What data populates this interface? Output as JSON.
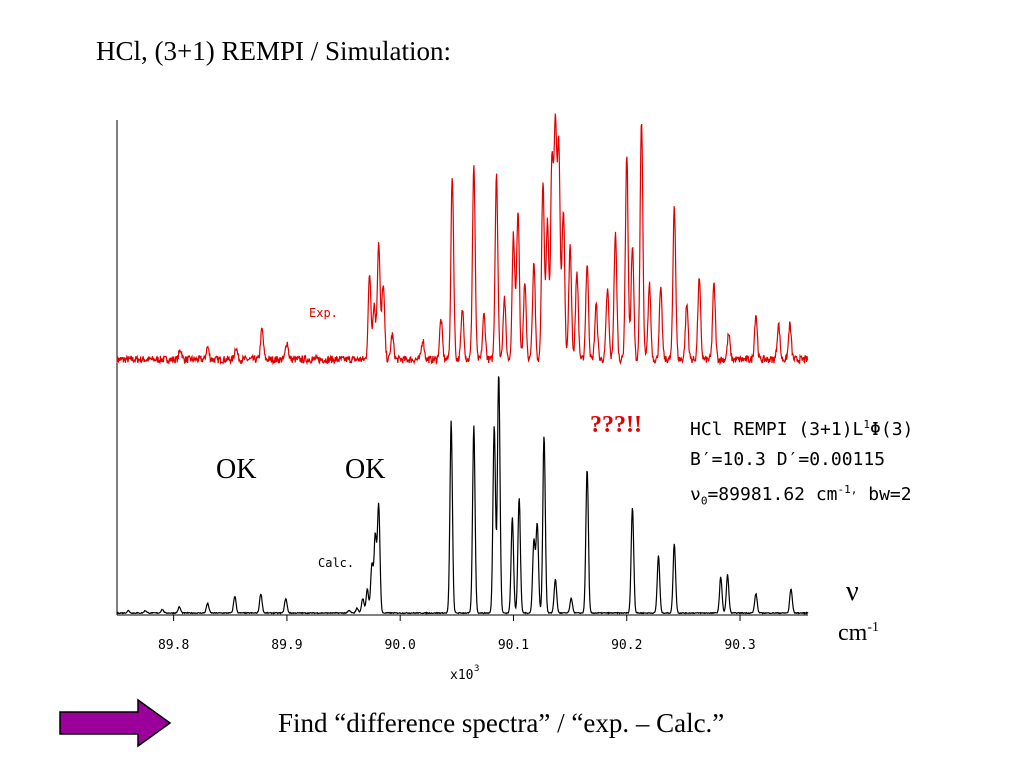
{
  "title": "HCl, (3+1) REMPI / Simulation:",
  "annotations": {
    "ok_left": "OK",
    "ok_right": "OK",
    "question": "???!!",
    "nu_symbol": "ν",
    "unit_base": "cm",
    "unit_exp": "-1",
    "footer": "Find  “difference spectra” / “exp. – Calc.”"
  },
  "info_box": {
    "line1_pre": "HCl REMPI (3+1)L",
    "line1_sup": "1",
    "line1_post": "Φ(3)",
    "line2": "B′=10.3  D′=0.00115",
    "line3_a": "ν",
    "line3_sub": "0",
    "line3_b": "=89981.62 cm",
    "line3_sup": "-1,",
    "line3_c": " bw=2"
  },
  "colors": {
    "exp": "#e00000",
    "calc": "#000000",
    "arrow_fill": "#9b009b",
    "question": "#e00000"
  },
  "chart_data": {
    "type": "line",
    "xlim": [
      89.75,
      90.36
    ],
    "x_ticks": [
      89.8,
      89.9,
      90.0,
      90.1,
      90.2,
      90.3
    ],
    "x_tick_labels": [
      "89.8",
      "89.9",
      "90.0",
      "90.1",
      "90.2",
      "90.3"
    ],
    "x_multiplier": "x10",
    "x_multiplier_exp": "3",
    "y_axis_labels": false,
    "series": [
      {
        "name": "Exp.",
        "color": "#e00000",
        "baseline": 0.05,
        "peaks": [
          [
            89.806,
            0.04
          ],
          [
            89.83,
            0.05
          ],
          [
            89.855,
            0.05
          ],
          [
            89.878,
            0.12
          ],
          [
            89.9,
            0.07
          ],
          [
            89.973,
            0.34
          ],
          [
            89.977,
            0.22
          ],
          [
            89.981,
            0.47
          ],
          [
            89.985,
            0.3
          ],
          [
            89.993,
            0.1
          ],
          [
            90.02,
            0.08
          ],
          [
            90.036,
            0.16
          ],
          [
            90.046,
            0.73
          ],
          [
            90.055,
            0.2
          ],
          [
            90.065,
            0.78
          ],
          [
            90.074,
            0.18
          ],
          [
            90.085,
            0.75
          ],
          [
            90.092,
            0.25
          ],
          [
            90.1,
            0.5
          ],
          [
            90.104,
            0.6
          ],
          [
            90.11,
            0.3
          ],
          [
            90.118,
            0.38
          ],
          [
            90.126,
            0.72
          ],
          [
            90.13,
            0.55
          ],
          [
            90.134,
            0.8
          ],
          [
            90.137,
            0.9
          ],
          [
            90.14,
            0.85
          ],
          [
            90.144,
            0.6
          ],
          [
            90.15,
            0.45
          ],
          [
            90.156,
            0.35
          ],
          [
            90.165,
            0.38
          ],
          [
            90.173,
            0.22
          ],
          [
            90.183,
            0.28
          ],
          [
            90.19,
            0.5
          ],
          [
            90.2,
            0.82
          ],
          [
            90.205,
            0.45
          ],
          [
            90.213,
            0.95
          ],
          [
            90.22,
            0.3
          ],
          [
            90.23,
            0.28
          ],
          [
            90.242,
            0.62
          ],
          [
            90.253,
            0.22
          ],
          [
            90.264,
            0.32
          ],
          [
            90.277,
            0.3
          ],
          [
            90.29,
            0.1
          ],
          [
            90.314,
            0.18
          ],
          [
            90.334,
            0.14
          ],
          [
            90.344,
            0.14
          ]
        ]
      },
      {
        "name": "Calc.",
        "color": "#000000",
        "baseline": 0.0,
        "peaks": [
          [
            89.76,
            0.01
          ],
          [
            89.775,
            0.01
          ],
          [
            89.79,
            0.015
          ],
          [
            89.805,
            0.025
          ],
          [
            89.83,
            0.04
          ],
          [
            89.854,
            0.07
          ],
          [
            89.877,
            0.08
          ],
          [
            89.899,
            0.06
          ],
          [
            89.955,
            0.01
          ],
          [
            89.962,
            0.02
          ],
          [
            89.967,
            0.06
          ],
          [
            89.971,
            0.1
          ],
          [
            89.975,
            0.2
          ],
          [
            89.978,
            0.32
          ],
          [
            89.981,
            0.45
          ],
          [
            90.045,
            0.8
          ],
          [
            90.065,
            0.78
          ],
          [
            90.083,
            0.78
          ],
          [
            90.087,
            1.0
          ],
          [
            90.099,
            0.4
          ],
          [
            90.105,
            0.48
          ],
          [
            90.118,
            0.3
          ],
          [
            90.121,
            0.37
          ],
          [
            90.127,
            0.74
          ],
          [
            90.137,
            0.14
          ],
          [
            90.151,
            0.06
          ],
          [
            90.165,
            0.6
          ],
          [
            90.205,
            0.44
          ],
          [
            90.228,
            0.24
          ],
          [
            90.242,
            0.29
          ],
          [
            90.283,
            0.15
          ],
          [
            90.289,
            0.16
          ],
          [
            90.314,
            0.08
          ],
          [
            90.345,
            0.1
          ]
        ]
      }
    ],
    "series_labels": [
      "Exp.",
      "Calc."
    ]
  }
}
